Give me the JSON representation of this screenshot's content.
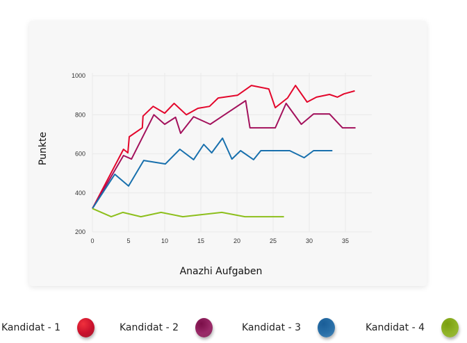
{
  "chart_data": {
    "type": "line",
    "title": "",
    "xlabel": "Anazhi Aufgaben",
    "ylabel": "Punkte",
    "xlim": [
      0,
      38.6
    ],
    "ylim": [
      200,
      1000
    ],
    "xticks": [
      0,
      5,
      10,
      15,
      20,
      25,
      30,
      35
    ],
    "yticks": [
      200,
      400,
      600,
      800,
      1000
    ],
    "grid": true,
    "legend_position": "bottom",
    "series": [
      {
        "name": "Kandidat - 1",
        "color": "#e3062b",
        "x": [
          0,
          4.3,
          4.9,
          5.1,
          6.9,
          7,
          8.4,
          10,
          11.3,
          13,
          14.6,
          16.2,
          17.4,
          20.1,
          22,
          24.4,
          25.3,
          27,
          28.1,
          29.7,
          31,
          32.8,
          33.9,
          34.8,
          36.3
        ],
        "y": [
          320,
          623,
          605,
          687,
          733,
          793,
          843,
          808,
          858,
          800,
          833,
          843,
          886,
          900,
          950,
          932,
          836,
          886,
          950,
          865,
          890,
          904,
          890,
          907,
          922
        ]
      },
      {
        "name": "Kandidat - 2",
        "color": "#a3115c",
        "x": [
          0,
          4.3,
          5.4,
          8.5,
          10,
          11.5,
          12.2,
          14,
          16.3,
          18,
          21.2,
          21.8,
          25.3,
          26.8,
          28.9,
          30.6,
          32.8,
          34.6,
          36.4
        ],
        "y": [
          320,
          591,
          573,
          800,
          751,
          787,
          705,
          790,
          751,
          793,
          872,
          733,
          733,
          858,
          751,
          804,
          804,
          733,
          733
        ]
      },
      {
        "name": "Kandidat - 3",
        "color": "#1870ad",
        "x": [
          0,
          3.1,
          5,
          7.1,
          10.1,
          12.1,
          14,
          15.4,
          16.5,
          18,
          19.3,
          20.5,
          22.3,
          23.3,
          27.3,
          29.3,
          30.6,
          33.2
        ],
        "y": [
          320,
          495,
          435,
          566,
          548,
          623,
          570,
          648,
          605,
          680,
          573,
          616,
          570,
          616,
          616,
          580,
          616,
          616
        ]
      },
      {
        "name": "Kandidat - 4",
        "color": "#8dbf1c",
        "x": [
          0,
          2.6,
          4.2,
          6.7,
          9.5,
          12.5,
          17.9,
          21.1,
          26.5
        ],
        "y": [
          320,
          278,
          300,
          278,
          300,
          278,
          300,
          278,
          278
        ]
      }
    ]
  },
  "legend": [
    {
      "label": "Kandidat - 1",
      "color": "#d0102c",
      "light": "#f0303c",
      "dark": "#a82030"
    },
    {
      "label": "Kandidat - 2",
      "color": "#8a1a55",
      "light": "#b04080",
      "dark": "#701040"
    },
    {
      "label": "Kandidat - 3",
      "color": "#2a6ea6",
      "light": "#4a90c8",
      "dark": "#1a5a90"
    },
    {
      "label": "Kandidat - 4",
      "color": "#86ac1e",
      "light": "#a8c830",
      "dark": "#6a9020"
    }
  ]
}
